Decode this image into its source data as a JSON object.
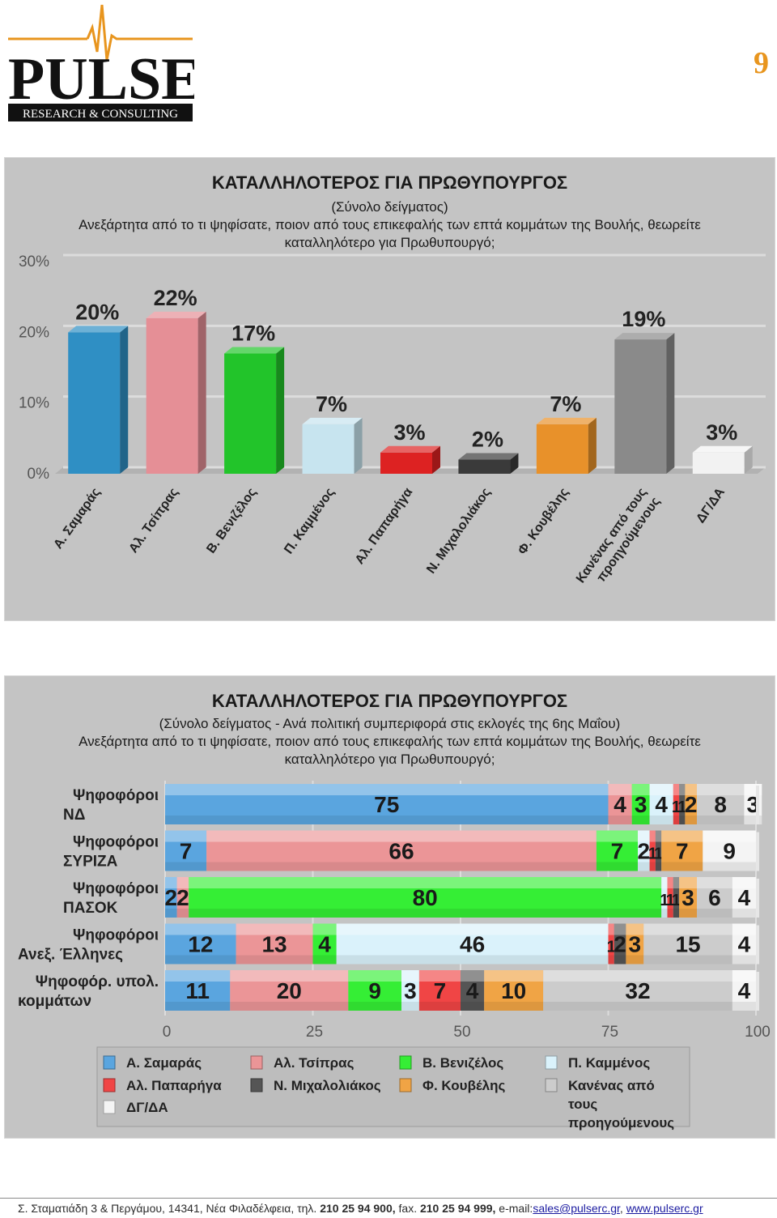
{
  "header": {
    "logo_word": "PULSE",
    "logo_sub": "RESEARCH & CONSULTING",
    "page_number": "9",
    "brand_color": "#e8951e"
  },
  "chart1": {
    "title": "ΚΑΤΑΛΛΗΛΟΤΕΡΟΣ ΓΙΑ ΠΡΩΘΥΠΟΥΡΓΟΣ",
    "subtitle": "(Σύνολο δείγματος)",
    "question_line1": "Ανεξάρτητα από το τι ψηφίσατε, ποιον από τους επικεφαλής των επτά κομμάτων της Βουλής, θεωρείτε",
    "question_line2": "καταλληλότερο για Πρωθυπουργό;"
  },
  "chart2": {
    "title": "ΚΑΤΑΛΛΗΛΟΤΕΡΟΣ ΓΙΑ ΠΡΩΘΥΠΟΥΡΓΟΣ",
    "subtitle": "(Σύνολο δείγματος - Ανά πολιτική συμπεριφορά στις εκλογές της 6ης Μαΐου)",
    "question_line1": "Ανεξάρτητα από το τι ψηφίσατε, ποιον από τους επικεφαλής των επτά κομμάτων της Βουλής, θεωρείτε",
    "question_line2": "καταλληλότερο για Πρωθυπουργό;"
  },
  "chart_data": [
    {
      "type": "bar",
      "categories": [
        "Α. Σαμαράς",
        "Αλ. Τσίπρας",
        "Β. Βενιζέλος",
        "Π. Καμμένος",
        "Αλ. Παπαρήγα",
        "Ν. Μιχαλολιάκος",
        "Φ. Κουβέλης",
        "Κανένας από τους προηγούμενους",
        "ΔΓ/ΔΑ"
      ],
      "category_lines": [
        [
          "Α. Σαμαράς"
        ],
        [
          "Αλ. Τσίπρας"
        ],
        [
          "Β. Βενιζέλος"
        ],
        [
          "Π. Καμμένος"
        ],
        [
          "Αλ. Παπαρήγα"
        ],
        [
          "Ν. Μιχαλολιάκος"
        ],
        [
          "Φ. Κουβέλης"
        ],
        [
          "Κανένας από τους",
          "προηγούμενους"
        ],
        [
          "ΔΓ/ΔΑ"
        ]
      ],
      "values": [
        20,
        22,
        17,
        7,
        3,
        2,
        7,
        19,
        3
      ],
      "data_labels": [
        "20%",
        "22%",
        "17%",
        "7%",
        "3%",
        "2%",
        "7%",
        "19%",
        "3%"
      ],
      "colors": [
        "#2f8fc4",
        "#e58f96",
        "#22c42a",
        "#c7e4ef",
        "#dd2222",
        "#3a3a3a",
        "#e8912a",
        "#8a8a8a",
        "#f2f2f2"
      ],
      "yticks": [
        0,
        10,
        20,
        30
      ],
      "ytick_labels": [
        "0%",
        "10%",
        "20%",
        "30%"
      ],
      "ylim": [
        0,
        30
      ],
      "grid": true
    },
    {
      "type": "bar",
      "orientation": "horizontal-stacked",
      "categories": [
        [
          "Ψηφοφόροι",
          "ΝΔ"
        ],
        [
          "Ψηφοφόροι",
          "ΣΥΡΙΖΑ"
        ],
        [
          "Ψηφοφόροι",
          "ΠΑΣΟΚ"
        ],
        [
          "Ψηφοφόροι",
          "Ανεξ. Έλληνες"
        ],
        [
          "Ψηφοφόρ. υπολ.",
          "κομμάτων"
        ]
      ],
      "series": [
        {
          "name": "Α. Σαμαράς",
          "color": "#5aa5df",
          "values": [
            75,
            7,
            2,
            12,
            11
          ],
          "labels": [
            "75",
            "7",
            "2",
            "12",
            "11"
          ]
        },
        {
          "name": "Αλ. Τσίπρας",
          "color": "#eb9597",
          "values": [
            4,
            66,
            2,
            13,
            20
          ],
          "labels": [
            "4",
            "66",
            "2",
            "13",
            "20"
          ]
        },
        {
          "name": "Β. Βενιζέλος",
          "color": "#35ee35",
          "values": [
            3,
            7,
            80,
            4,
            9
          ],
          "labels": [
            "3",
            "7",
            "80",
            "4",
            "9"
          ]
        },
        {
          "name": "Π. Καμμένος",
          "color": "#daf2fb",
          "values": [
            4,
            2,
            1,
            46,
            3
          ],
          "labels": [
            "4",
            "2",
            "1",
            "46",
            "3"
          ]
        },
        {
          "name": "Αλ. Παπαρήγα",
          "color": "#f04545",
          "values": [
            1,
            1,
            1,
            1,
            7
          ],
          "labels": [
            "1",
            "1",
            "1",
            "1",
            "7"
          ]
        },
        {
          "name": "Ν. Μιχαλολιάκος",
          "color": "#555555",
          "values": [
            1,
            1,
            1,
            2,
            4
          ],
          "labels": [
            "1",
            "1",
            "1",
            "2",
            "4"
          ]
        },
        {
          "name": "Φ. Κουβέλης",
          "color": "#f0a445",
          "values": [
            2,
            7,
            3,
            3,
            10
          ],
          "labels": [
            "2",
            "7",
            "3",
            "3",
            "10"
          ]
        },
        {
          "name": "Κανένας από τους προηγούμενους",
          "color": "#cccccc",
          "values": [
            8,
            0,
            6,
            15,
            32
          ],
          "labels": [
            "8",
            "",
            "6",
            "15",
            "32"
          ]
        },
        {
          "name": "ΔΓ/ΔΑ",
          "color": "#f4f4f4",
          "values": [
            3,
            9,
            4,
            4,
            4
          ],
          "labels": [
            "3",
            "9",
            "4",
            "4",
            "4"
          ]
        }
      ],
      "legend_lines": [
        [
          "Α. Σαμαράς"
        ],
        [
          "Αλ. Τσίπρας"
        ],
        [
          "Β. Βενιζέλος"
        ],
        [
          "Π. Καμμένος"
        ],
        [
          "Αλ. Παπαρήγα"
        ],
        [
          "Ν. Μιχαλολιάκος"
        ],
        [
          "Φ. Κουβέλης"
        ],
        [
          "Κανένας από",
          "τους",
          "προηγούμενους"
        ],
        [
          "ΔΓ/ΔΑ"
        ]
      ],
      "xticks": [
        0,
        25,
        50,
        75,
        100
      ],
      "xtick_labels": [
        "0",
        "25",
        "50",
        "75",
        "100"
      ],
      "xlim": [
        0,
        100
      ],
      "grid": true,
      "legend_position": "bottom"
    }
  ],
  "footer": {
    "address": "Σ. Σταματιάδη 3  &  Περγάμου,  14341,  Νέα Φιλαδέλφεια,  τηλ.",
    "phone": "210 25 94 900,",
    "fax_label": "fax.",
    "fax": "210 25 94 999,",
    "email_label": "e-mail:",
    "email": "sales@pulserc.gr",
    "separator": ",",
    "website": "www.pulserc.gr"
  }
}
